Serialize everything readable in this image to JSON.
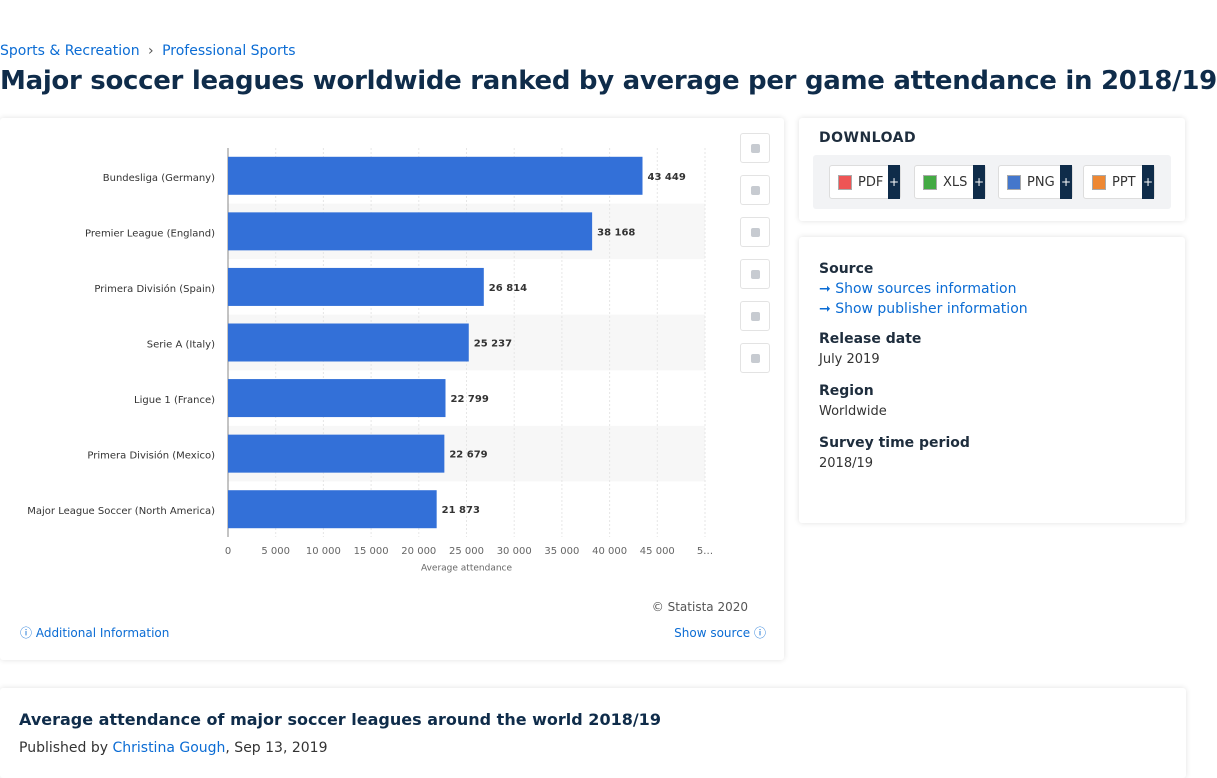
{
  "breadcrumbs": [
    "Sports & Recreation",
    "Professional Sports"
  ],
  "title": "Major soccer leagues worldwide ranked by average per game attendance in 2018/19",
  "chart_data": {
    "type": "bar",
    "orientation": "horizontal",
    "categories": [
      "Bundesliga (Germany)",
      "Premier League (England)",
      "Primera División (Spain)",
      "Serie A (Italy)",
      "Ligue 1 (France)",
      "Primera División (Mexico)",
      "Major League Soccer (North America)"
    ],
    "values": [
      43449,
      38168,
      26814,
      25237,
      22799,
      22679,
      21873
    ],
    "value_labels": [
      "43 449",
      "38 168",
      "26 814",
      "25 237",
      "22 799",
      "22 679",
      "21 873"
    ],
    "color": "#3370d8",
    "xlabel": "Average attendance",
    "xlim": [
      0,
      50000
    ],
    "xticks": [
      0,
      {
        "value": 5000,
        "label": "5 000"
      },
      {
        "value": 10000,
        "label": "10 000"
      },
      {
        "value": 15000,
        "label": "15 000"
      },
      {
        "value": 20000,
        "label": "20 000"
      },
      {
        "value": 25000,
        "label": "25 000"
      },
      {
        "value": 30000,
        "label": "30 000"
      },
      {
        "value": 35000,
        "label": "35 000"
      },
      {
        "value": 40000,
        "label": "40 000"
      },
      {
        "value": 45000,
        "label": "45 000"
      },
      {
        "value": 50000,
        "label": "5…"
      }
    ],
    "grid": true
  },
  "chart_footer": {
    "copyright": "© Statista 2020",
    "additional": "Additional Information",
    "show_source": "Show source"
  },
  "download": {
    "heading": "DOWNLOAD",
    "items": [
      {
        "label": "PDF",
        "plus": "+"
      },
      {
        "label": "XLS",
        "plus": "+"
      },
      {
        "label": "PNG",
        "plus": "+"
      },
      {
        "label": "PPT",
        "plus": "+"
      }
    ]
  },
  "info": {
    "source_heading": "Source",
    "show_sources": "Show sources information",
    "show_publisher": "Show publisher information",
    "release_heading": "Release date",
    "release": "July 2019",
    "region_heading": "Region",
    "region": "Worldwide",
    "period_heading": "Survey time period",
    "period": "2018/19"
  },
  "description": {
    "title": "Average attendance of major soccer leagues around the world 2018/19",
    "published_by": "Published by",
    "author": "Christina Gough",
    "date": ", Sep 13, 2019"
  }
}
